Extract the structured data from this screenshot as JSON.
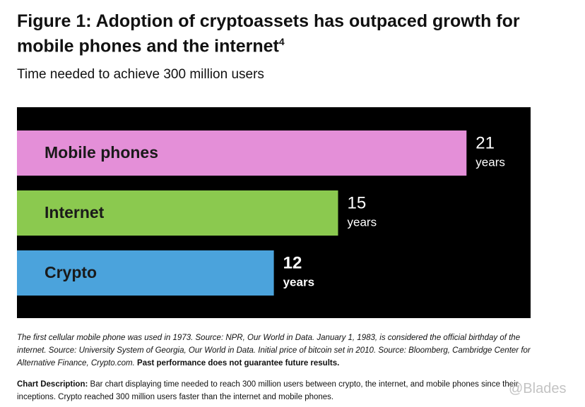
{
  "chart_data": {
    "type": "bar",
    "orientation": "horizontal",
    "title": "Figure 1: Adoption of cryptoassets has outpaced growth for mobile phones and the internet",
    "title_note": "4",
    "subtitle": "Time needed to achieve 300 million users",
    "categories": [
      "Mobile phones",
      "Internet",
      "Crypto"
    ],
    "values": [
      21,
      15,
      12
    ],
    "value_unit": "years",
    "colors": [
      "#e48fd8",
      "#8bc94f",
      "#4ba3dc"
    ],
    "background": "#000000",
    "footnote": "The first cellular mobile phone was used in 1973. Source: NPR, Our World in Data. January 1, 1983, is considered the official birthday of the internet. Source: University System of Georgia, Our World in Data. Initial price of bitcoin set in 2010. Source: Bloomberg, Cambridge Center for Alternative Finance, Crypto.com.",
    "footnote_emphasis": "Past performance does not guarantee future results.",
    "description_label": "Chart Description:",
    "description": "Bar chart displaying time needed to reach 300 million users between crypto, the internet, and mobile phones since their inceptions. Crypto reached 300 million users faster than the internet and mobile phones.",
    "watermark": "@Blades"
  }
}
